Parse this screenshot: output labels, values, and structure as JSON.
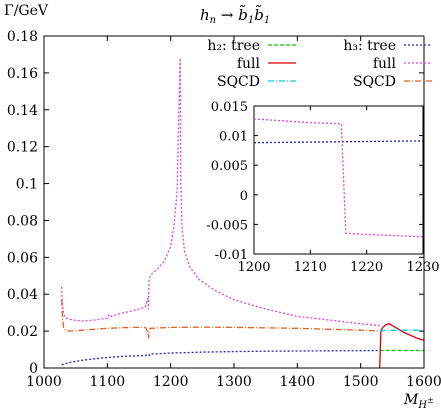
{
  "chart_data": {
    "type": "line",
    "title": "h_n → b̃₁b̃₁",
    "ylabel": "Γ/GeV",
    "xlabel": "M_H±",
    "xlim": [
      1000,
      1600
    ],
    "ylim": [
      0,
      0.18
    ],
    "xticks": [
      1000,
      1100,
      1200,
      1300,
      1400,
      1500,
      1600
    ],
    "yticks": [
      0,
      0.02,
      0.04,
      0.06,
      0.08,
      0.1,
      0.12,
      0.14,
      0.16,
      0.18
    ],
    "legend": {
      "placement": "top-right",
      "groups": [
        {
          "title": "h₂: tree",
          "series_ids": [
            "h2_tree",
            "h2_full",
            "h2_sqcd"
          ]
        },
        {
          "title": "h₃: tree",
          "series_ids": [
            "h3_tree",
            "h3_full",
            "h3_sqcd"
          ]
        }
      ],
      "entries": [
        "tree",
        "full",
        "SQCD"
      ]
    },
    "series": [
      {
        "id": "h2_tree",
        "name": "h₂: tree",
        "color": "#00c800",
        "dash": "4,2",
        "x": [
          1530,
          1545,
          1560,
          1580,
          1600
        ],
        "y": [
          0.0095,
          0.0095,
          0.0095,
          0.0095,
          0.0095
        ]
      },
      {
        "id": "h2_full",
        "name": "full",
        "color": "#e00000",
        "dash": "",
        "x": [
          1530,
          1532,
          1535,
          1540,
          1545,
          1550,
          1560,
          1570,
          1580,
          1590,
          1600
        ],
        "y": [
          0.0,
          0.02,
          0.022,
          0.0235,
          0.024,
          0.023,
          0.021,
          0.019,
          0.0175,
          0.016,
          0.015
        ]
      },
      {
        "id": "h2_sqcd",
        "name": "SQCD",
        "color": "#00d0e0",
        "dash": "6,2,1,2",
        "x": [
          1530,
          1540,
          1560,
          1580,
          1600
        ],
        "y": [
          0.02,
          0.0205,
          0.0205,
          0.0205,
          0.0205
        ]
      },
      {
        "id": "h3_tree",
        "name": "h₃: tree",
        "color": "#2020d0",
        "dash": "2,2",
        "x": [
          1028,
          1040,
          1060,
          1080,
          1100,
          1130,
          1160,
          1165,
          1167,
          1170,
          1200,
          1250,
          1300,
          1350,
          1400,
          1450,
          1500,
          1528
        ],
        "y": [
          0.0018,
          0.003,
          0.0042,
          0.005,
          0.0057,
          0.0064,
          0.0068,
          0.0075,
          0.0068,
          0.0076,
          0.0081,
          0.0086,
          0.0089,
          0.0091,
          0.0092,
          0.0093,
          0.0094,
          0.0095
        ]
      },
      {
        "id": "h3_full",
        "name": "full",
        "color": "#e040e0",
        "dash": "2,2",
        "x": [
          1028,
          1029,
          1031,
          1035,
          1045,
          1060,
          1080,
          1100,
          1103,
          1106,
          1120,
          1140,
          1160,
          1164,
          1165,
          1166,
          1168,
          1170,
          1180,
          1190,
          1200,
          1205,
          1210,
          1213,
          1215,
          1216,
          1218,
          1222,
          1230,
          1245,
          1270,
          1300,
          1350,
          1400,
          1450,
          1500,
          1530
        ],
        "y": [
          0.044,
          0.035,
          0.029,
          0.027,
          0.026,
          0.0255,
          0.026,
          0.027,
          0.029,
          0.028,
          0.0295,
          0.031,
          0.033,
          0.038,
          0.032,
          0.048,
          0.05,
          0.051,
          0.054,
          0.058,
          0.066,
          0.076,
          0.095,
          0.14,
          0.168,
          0.1,
          0.076,
          0.063,
          0.055,
          0.048,
          0.042,
          0.037,
          0.032,
          0.028,
          0.026,
          0.024,
          0.023
        ]
      },
      {
        "id": "h3_sqcd",
        "name": "SQCD",
        "color": "#e06020",
        "dash": "6,2,1,2",
        "x": [
          1028,
          1029,
          1031,
          1034,
          1040,
          1060,
          1100,
          1140,
          1160,
          1164,
          1165,
          1166,
          1168,
          1200,
          1250,
          1300,
          1400,
          1500,
          1530
        ],
        "y": [
          0.037,
          0.028,
          0.022,
          0.0205,
          0.02,
          0.0205,
          0.0215,
          0.022,
          0.022,
          0.0195,
          0.016,
          0.02,
          0.0215,
          0.022,
          0.0222,
          0.022,
          0.0215,
          0.0205,
          0.02
        ]
      }
    ],
    "inset": {
      "xlim": [
        1200,
        1230
      ],
      "ylim": [
        -0.01,
        0.015
      ],
      "xticks": [
        1200,
        1210,
        1220,
        1230
      ],
      "yticks": [
        -0.01,
        -0.005,
        0,
        0.005,
        0.01,
        0.015
      ],
      "series": [
        {
          "color": "#2020d0",
          "dash": "2,2",
          "x": [
            1200,
            1230
          ],
          "y": [
            0.0088,
            0.0091
          ]
        },
        {
          "color": "#e040e0",
          "dash": "2,2",
          "x": [
            1200,
            1205,
            1210,
            1215.5,
            1216.3,
            1220,
            1225,
            1230
          ],
          "y": [
            0.0128,
            0.0125,
            0.0122,
            0.012,
            -0.0065,
            -0.0067,
            -0.0069,
            -0.0071
          ]
        }
      ]
    }
  }
}
